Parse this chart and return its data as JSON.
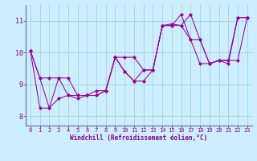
{
  "xlabel": "Windchill (Refroidissement éolien,°C)",
  "bg_color": "#cceeff",
  "line_color": "#990099",
  "grid_color": "#99cccc",
  "axis_color": "#666699",
  "xlim": [
    -0.5,
    23.5
  ],
  "ylim": [
    7.7,
    11.5
  ],
  "xticks": [
    0,
    1,
    2,
    3,
    4,
    5,
    6,
    7,
    8,
    9,
    10,
    11,
    12,
    13,
    14,
    15,
    16,
    17,
    18,
    19,
    20,
    21,
    22,
    23
  ],
  "yticks": [
    8,
    9,
    10,
    11
  ],
  "line1_x": [
    0,
    1,
    2,
    3,
    4,
    5,
    6,
    7,
    8,
    9,
    10,
    11,
    12,
    13,
    14,
    15,
    16,
    17,
    18,
    19,
    20,
    21,
    22,
    23
  ],
  "line1_y": [
    10.05,
    9.2,
    8.25,
    8.55,
    8.65,
    8.55,
    8.65,
    8.65,
    8.8,
    9.85,
    9.4,
    9.1,
    9.45,
    9.45,
    10.85,
    10.9,
    10.85,
    11.2,
    10.4,
    9.65,
    9.75,
    9.65,
    11.1,
    11.1
  ],
  "line2_x": [
    0,
    1,
    2,
    3,
    4,
    5,
    6,
    7,
    8,
    9,
    10,
    11,
    12,
    13,
    14,
    15,
    16,
    17,
    18,
    19,
    20,
    21,
    22,
    23
  ],
  "line2_y": [
    10.05,
    9.2,
    9.2,
    9.2,
    8.65,
    8.65,
    8.65,
    8.8,
    8.8,
    9.85,
    9.85,
    9.85,
    9.45,
    9.45,
    10.85,
    10.85,
    10.85,
    10.4,
    10.4,
    9.65,
    9.75,
    9.75,
    9.75,
    11.1
  ],
  "line3_x": [
    0,
    1,
    2,
    3,
    4,
    5,
    6,
    7,
    8,
    9,
    10,
    11,
    12,
    13,
    14,
    15,
    16,
    17,
    18,
    19,
    20,
    21,
    22,
    23
  ],
  "line3_y": [
    10.05,
    8.25,
    8.25,
    9.2,
    9.2,
    8.65,
    8.65,
    8.65,
    8.8,
    9.85,
    9.4,
    9.1,
    9.1,
    9.45,
    10.85,
    10.85,
    11.2,
    10.4,
    9.65,
    9.65,
    9.75,
    9.75,
    11.1,
    11.1
  ],
  "tick_fontsize": 5,
  "xlabel_fontsize": 5.5,
  "tick_color": "#880088",
  "label_color": "#880088"
}
